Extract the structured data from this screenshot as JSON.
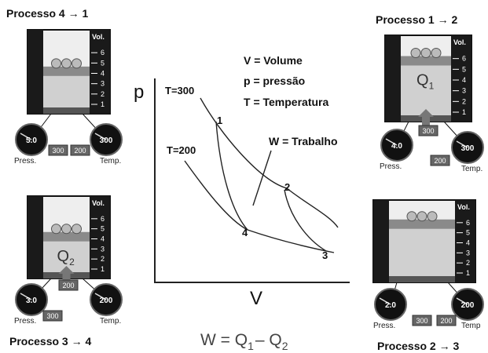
{
  "vol_label": "Vol.",
  "vol_scale": [
    "1",
    "2",
    "3",
    "4",
    "5",
    "6"
  ],
  "panels": [
    {
      "title": "Processo  4 → 1",
      "pressure": "5.0",
      "temperature": "300",
      "press_label": "Press.",
      "temp_label": "Temp.",
      "buttons": [
        "300",
        "200"
      ]
    },
    {
      "title": "Processo  1 → 2",
      "pressure": "4.0",
      "temperature": "300",
      "press_label": "Press.",
      "temp_label": "Temp.",
      "buttons": [
        "300",
        "200"
      ],
      "q": {
        "symbol": "Q",
        "sub": "1"
      }
    },
    {
      "title": "Processo  3 → 4",
      "pressure": "3.0",
      "temperature": "200",
      "press_label": "Press.",
      "temp_label": "Temp.",
      "buttons": [
        "200",
        "300"
      ],
      "q": {
        "symbol": "Q",
        "sub": "2"
      }
    },
    {
      "title": "Processo  2 → 3",
      "pressure": "2.0",
      "temperature": "200",
      "press_label": "Press.",
      "temp_label": "Temp",
      "buttons": [
        "300",
        "200"
      ]
    }
  ],
  "diagram": {
    "y_axis": "p",
    "x_axis": "V",
    "iso_high": "T=300",
    "iso_low": "T=200",
    "points": [
      "1",
      "2",
      "3",
      "4"
    ],
    "legend": [
      "V =  Volume",
      "p =  pressão",
      "T = Temperatura"
    ],
    "work": "W = Trabalho",
    "formula": {
      "lhs": "W = ",
      "q1": "Q",
      "q1_sub": "1",
      "minus": "– ",
      "q2": "Q",
      "q2_sub": "2"
    }
  }
}
